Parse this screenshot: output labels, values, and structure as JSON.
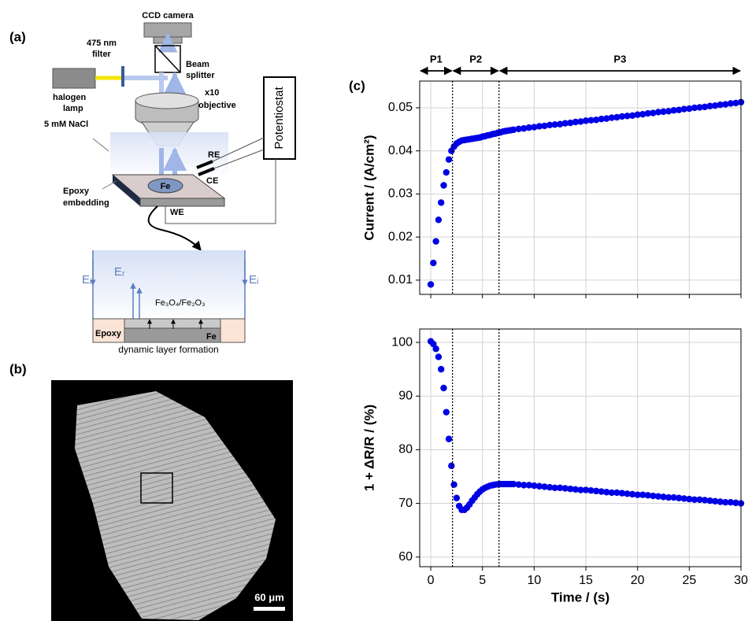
{
  "panel_a": {
    "label": "(a)",
    "ccd": "CCD camera",
    "filter": [
      "475 nm",
      "filter"
    ],
    "splitter": [
      "Beam",
      "splitter"
    ],
    "lamp": [
      "halogen",
      "lamp"
    ],
    "objective": [
      "x10",
      "objective"
    ],
    "solution": "5 mM NaCl",
    "potentiostat": "Potentiostat",
    "re": "RE",
    "ce": "CE",
    "fe": "Fe",
    "embedding": [
      "Epoxy",
      "embedding"
    ],
    "we": "WE",
    "inset": {
      "ei_left": "Eᵢ",
      "er": "Eᵣ",
      "ei_right": "Eᵢ",
      "oxide": "Fe₃O₄/Fe₂O₃",
      "epoxy": "Epoxy",
      "fe": "Fe",
      "caption": "dynamic layer formation"
    }
  },
  "panel_b": {
    "label": "(b)",
    "scale_bar": "60 μm"
  },
  "panel_c": {
    "label": "(c)"
  },
  "chart_data": [
    {
      "type": "scatter",
      "ylabel": "Current / (A/cm²)",
      "color": "#0000e6",
      "grid": true,
      "xtick_labels": false,
      "xlim": [
        -1.07,
        30
      ],
      "ylim": [
        0.0067,
        0.0562
      ],
      "xticks": [
        0,
        5,
        10,
        15,
        20,
        25,
        30
      ],
      "yticks": [
        0.01,
        0.02,
        0.03,
        0.04,
        0.05
      ],
      "phases": [
        {
          "label": "P1",
          "from": -1.07,
          "to": 2.1
        },
        {
          "label": "P2",
          "from": 2.1,
          "to": 6.6
        },
        {
          "label": "P3",
          "from": 6.6,
          "to": 30
        }
      ],
      "x": [
        0,
        0.25,
        0.5,
        0.75,
        1,
        1.25,
        1.5,
        1.75,
        2,
        2.25,
        2.5,
        2.75,
        3,
        3.25,
        3.5,
        3.75,
        4,
        4.25,
        4.5,
        4.75,
        5,
        5.25,
        5.5,
        5.75,
        6,
        6.25,
        6.5,
        6.75,
        7,
        7.25,
        7.5,
        7.75,
        8,
        8.5,
        9,
        9.5,
        10,
        10.5,
        11,
        11.5,
        12,
        12.5,
        13,
        13.5,
        14,
        14.5,
        15,
        15.5,
        16,
        16.5,
        17,
        17.5,
        18,
        18.5,
        19,
        19.5,
        20,
        20.5,
        21,
        21.5,
        22,
        22.5,
        23,
        23.5,
        24,
        24.5,
        25,
        25.5,
        26,
        26.5,
        27,
        27.5,
        28,
        28.5,
        29,
        29.5,
        30
      ],
      "values": [
        0.009,
        0.014,
        0.019,
        0.024,
        0.028,
        0.032,
        0.035,
        0.038,
        0.04,
        0.041,
        0.0417,
        0.0421,
        0.0424,
        0.0425,
        0.0426,
        0.0427,
        0.0428,
        0.0429,
        0.043,
        0.0431,
        0.0433,
        0.0434,
        0.0436,
        0.0437,
        0.0439,
        0.044,
        0.0442,
        0.0443,
        0.0445,
        0.0446,
        0.0447,
        0.0448,
        0.0449,
        0.0451,
        0.0452,
        0.0454,
        0.0455,
        0.0457,
        0.0458,
        0.046,
        0.0461,
        0.0462,
        0.0464,
        0.0465,
        0.0467,
        0.0468,
        0.047,
        0.0471,
        0.0472,
        0.0474,
        0.0475,
        0.0477,
        0.0478,
        0.048,
        0.0481,
        0.0482,
        0.0484,
        0.0485,
        0.0487,
        0.0488,
        0.049,
        0.0491,
        0.0492,
        0.0494,
        0.0495,
        0.0497,
        0.0498,
        0.05,
        0.0501,
        0.0502,
        0.0504,
        0.0505,
        0.0507,
        0.0508,
        0.051,
        0.0511,
        0.0513
      ]
    },
    {
      "type": "scatter",
      "ylabel": "1 + ΔR/R / (%)",
      "xlabel": "Time / (s)",
      "color": "#0000e6",
      "grid": true,
      "xlim": [
        -1.07,
        30
      ],
      "ylim": [
        58.2,
        102.5
      ],
      "xticks": [
        0,
        5,
        10,
        15,
        20,
        25,
        30
      ],
      "yticks": [
        60,
        70,
        80,
        90,
        100
      ],
      "x": [
        0,
        0.25,
        0.5,
        0.75,
        1,
        1.25,
        1.5,
        1.75,
        2,
        2.25,
        2.5,
        2.75,
        3,
        3.25,
        3.5,
        3.75,
        4,
        4.25,
        4.5,
        4.75,
        5,
        5.25,
        5.5,
        5.75,
        6,
        6.25,
        6.5,
        6.75,
        7,
        7.25,
        7.5,
        7.75,
        8,
        8.5,
        9,
        9.5,
        10,
        10.5,
        11,
        11.5,
        12,
        12.5,
        13,
        13.5,
        14,
        14.5,
        15,
        15.5,
        16,
        16.5,
        17,
        17.5,
        18,
        18.5,
        19,
        19.5,
        20,
        20.5,
        21,
        21.5,
        22,
        22.5,
        23,
        23.5,
        24,
        24.5,
        25,
        25.5,
        26,
        26.5,
        27,
        27.5,
        28,
        28.5,
        29,
        29.5,
        30
      ],
      "values": [
        100.2,
        99.7,
        98.8,
        97.3,
        95,
        91.5,
        87,
        82,
        77,
        73.5,
        71,
        69.5,
        68.8,
        68.8,
        69.2,
        69.8,
        70.5,
        71.1,
        71.7,
        72.2,
        72.6,
        72.9,
        73.1,
        73.3,
        73.4,
        73.5,
        73.55,
        73.6,
        73.6,
        73.6,
        73.6,
        73.6,
        73.6,
        73.5,
        73.4,
        73.4,
        73.3,
        73.2,
        73.1,
        73.0,
        72.9,
        72.9,
        72.8,
        72.7,
        72.6,
        72.5,
        72.5,
        72.4,
        72.3,
        72.2,
        72.1,
        72.0,
        72.0,
        71.9,
        71.8,
        71.7,
        71.6,
        71.6,
        71.5,
        71.4,
        71.3,
        71.2,
        71.1,
        71.1,
        71.0,
        70.9,
        70.8,
        70.7,
        70.7,
        70.6,
        70.5,
        70.4,
        70.3,
        70.2,
        70.2,
        70.1,
        70.0
      ]
    }
  ]
}
